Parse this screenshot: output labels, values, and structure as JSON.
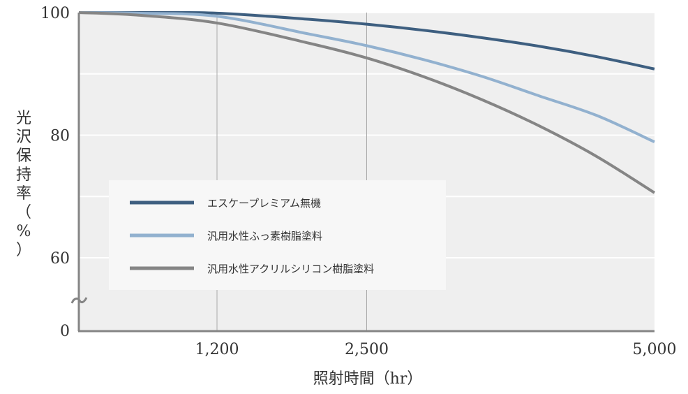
{
  "chart_data": {
    "type": "line",
    "xlabel": "照射時間（hr）",
    "ylabel": "光沢保持率（%）",
    "x_ticks": [
      "1,200",
      "2,500",
      "5,000"
    ],
    "y_ticks": [
      "100",
      "80",
      "60",
      "0"
    ],
    "xlim": [
      0,
      5000
    ],
    "ylim": [
      50,
      100
    ],
    "axis_break": "y between 60 and 0",
    "grid": true,
    "legend_position": "center-left",
    "x": [
      0,
      500,
      1200,
      2000,
      2500,
      3000,
      3500,
      4000,
      4500,
      5000
    ],
    "series": [
      {
        "name": "エスケープレミアム無機",
        "color": "#3e5f80",
        "values": [
          100,
          100,
          99.9,
          98.9,
          98.1,
          97.1,
          95.9,
          94.5,
          92.8,
          90.8
        ]
      },
      {
        "name": "汎用水性ふっ素樹脂塗料",
        "color": "#92b1cf",
        "values": [
          100,
          99.9,
          99.4,
          96.5,
          94.6,
          92.3,
          89.6,
          86.4,
          83.2,
          78.9
        ]
      },
      {
        "name": "汎用水性アクリルシリコン樹脂塗料",
        "color": "#858585",
        "values": [
          100,
          99.6,
          98.3,
          95,
          92.6,
          89.5,
          85.8,
          81.5,
          76.5,
          70.6
        ]
      }
    ]
  }
}
